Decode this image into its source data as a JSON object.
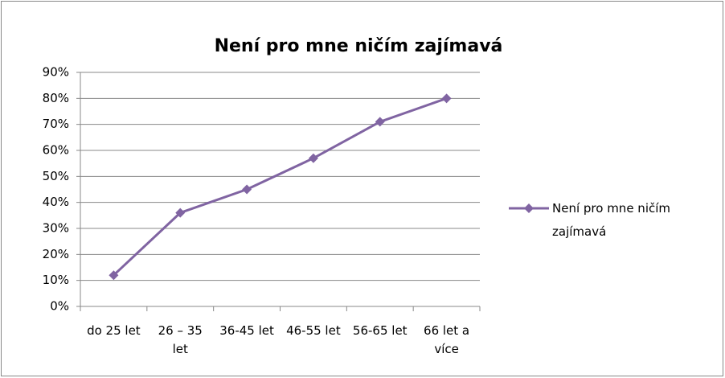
{
  "chart_data": {
    "type": "line",
    "title": "Není pro mne ničím zajímavá",
    "categories": [
      "do 25 let",
      "26 – 35 let",
      "36-45 let",
      "46-55 let",
      "56-65 let",
      "66 let a více"
    ],
    "series": [
      {
        "name": "Není pro mne ničím zajímavá",
        "color": "#8064a2",
        "values": [
          12,
          36,
          45,
          57,
          71,
          80
        ]
      }
    ],
    "ylim": [
      0,
      90
    ],
    "yticks": [
      {
        "value": 0,
        "label": "0%"
      },
      {
        "value": 10,
        "label": "10%"
      },
      {
        "value": 20,
        "label": "20%"
      },
      {
        "value": 30,
        "label": "30%"
      },
      {
        "value": 40,
        "label": "40%"
      },
      {
        "value": 50,
        "label": "50%"
      },
      {
        "value": 60,
        "label": "60%"
      },
      {
        "value": 70,
        "label": "70%"
      },
      {
        "value": 80,
        "label": "80%"
      },
      {
        "value": 90,
        "label": "90%"
      }
    ],
    "grid": true,
    "legend": "right"
  }
}
